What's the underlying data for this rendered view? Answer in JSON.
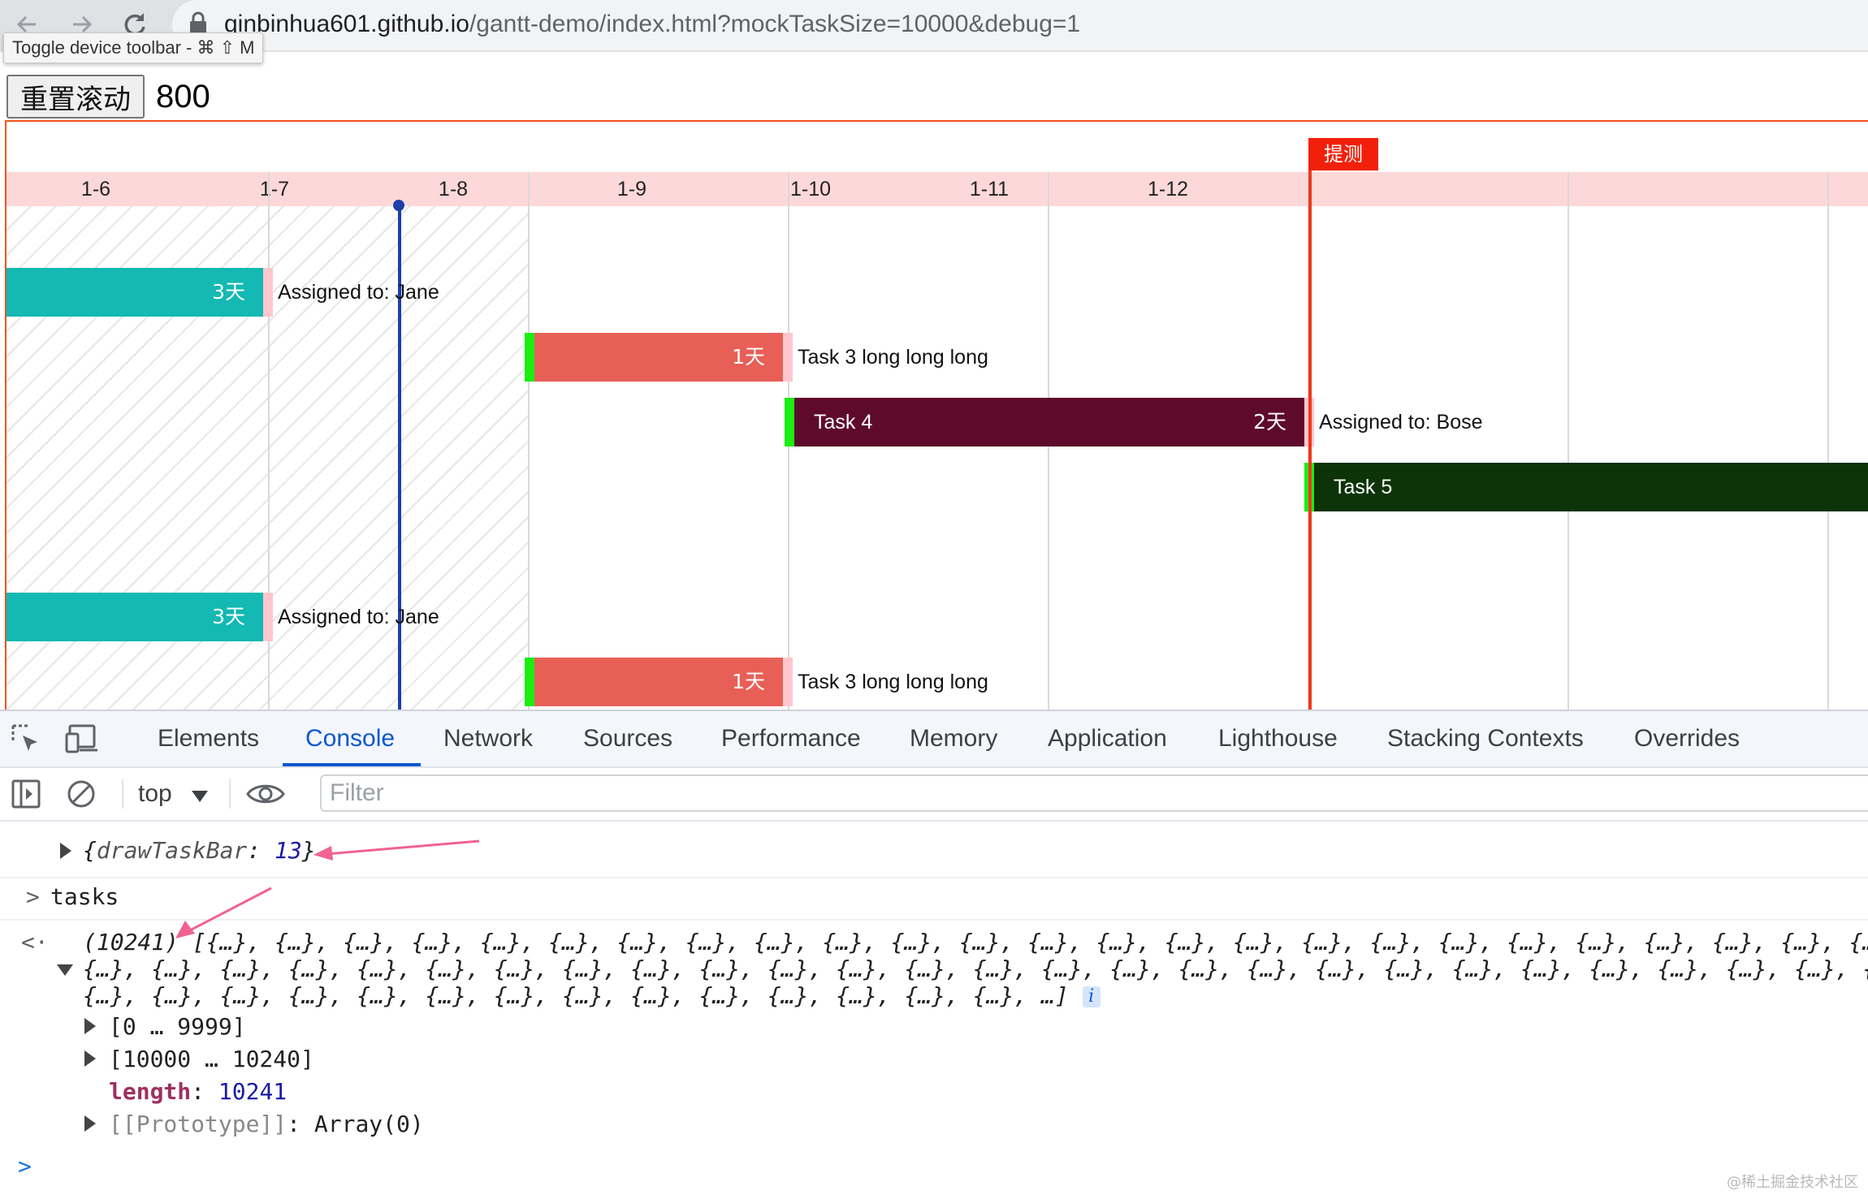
{
  "browser": {
    "url_host": "qinbinhua601.github.io",
    "url_path": "/gantt-demo/index.html?mockTaskSize=10000&debug=1",
    "tooltip": "Toggle device toolbar - ⌘ ⇧ M",
    "icons": [
      "back-icon",
      "forward-icon",
      "reload-icon",
      "lock-icon"
    ]
  },
  "page": {
    "reset_button": "重置滚动",
    "scroll_value": "800"
  },
  "gantt": {
    "dates": [
      "1-6",
      "1-7",
      "1-8",
      "1-9",
      "1-10",
      "1-11",
      "1-12"
    ],
    "milestone_label": "提测",
    "colors": {
      "header_bg": "#fdd8d8",
      "teal": "#13b9b2",
      "coral": "#e85f57",
      "maroon": "#5e0b2b",
      "dark_green": "#0d3309",
      "handle": "#1aee12",
      "milestone": "#f2200a",
      "today": "#1e3ea8"
    },
    "tasks": [
      {
        "name": "",
        "duration": "3天",
        "label": "Assigned to: Jane"
      },
      {
        "name": "",
        "duration": "1天",
        "label": "Task 3 long long long"
      },
      {
        "name": "Task 4",
        "duration": "2天",
        "label": "Assigned to: Bose"
      },
      {
        "name": "Task 5",
        "duration": "",
        "label": ""
      },
      {
        "name": "",
        "duration": "3天",
        "label": "Assigned to: Jane"
      },
      {
        "name": "",
        "duration": "1天",
        "label": "Task 3 long long long"
      }
    ]
  },
  "devtools": {
    "tabs": [
      "Elements",
      "Console",
      "Network",
      "Sources",
      "Performance",
      "Memory",
      "Application",
      "Lighthouse",
      "Stacking Contexts",
      "Overrides"
    ],
    "active_tab": "Console",
    "context": "top",
    "filter_placeholder": "Filter",
    "console": {
      "log_key": "drawTaskBar",
      "log_value": "13",
      "command": "tasks",
      "array_count": "(10241)",
      "array_line1": "[{…}, {…}, {…}, {…}, {…}, {…}, {…}, {…}, {…}, {…}, {…}, {…}, {…}, {…}, {…}, {…}, {…}, {…}, {…}, {…}, {…}, {…}, {…}, {…}, {…},",
      "array_line2": "{…}, {…}, {…}, {…}, {…}, {…}, {…}, {…}, {…}, {…}, {…}, {…}, {…}, {…}, {…}, {…}, {…}, {…}, {…}, {…}, {…}, {…}, {…}, {…}, {…}, {…}, {…},",
      "array_line3": "{…}, {…}, {…}, {…}, {…}, {…}, {…}, {…}, {…}, {…}, {…}, {…}, {…}, {…}, …]",
      "range1": "[0 … 9999]",
      "range2": "[10000 … 10240]",
      "length_key": "length",
      "length_value": "10241",
      "prototype_key": "[[Prototype]]",
      "prototype_value": "Array(0)"
    }
  },
  "watermark": "@稀土掘金技术社区"
}
